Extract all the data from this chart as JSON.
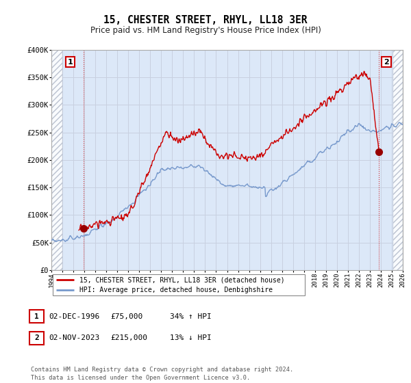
{
  "title": "15, CHESTER STREET, RHYL, LL18 3ER",
  "subtitle": "Price paid vs. HM Land Registry's House Price Index (HPI)",
  "red_label": "15, CHESTER STREET, RHYL, LL18 3ER (detached house)",
  "blue_label": "HPI: Average price, detached house, Denbighshire",
  "annotation1_num": "1",
  "annotation1_date": "02-DEC-1996",
  "annotation1_price": "£75,000",
  "annotation1_hpi": "34% ↑ HPI",
  "annotation2_num": "2",
  "annotation2_date": "02-NOV-2023",
  "annotation2_price": "£215,000",
  "annotation2_hpi": "13% ↓ HPI",
  "footer": "Contains HM Land Registry data © Crown copyright and database right 2024.\nThis data is licensed under the Open Government Licence v3.0.",
  "red_color": "#cc0000",
  "blue_color": "#7799cc",
  "marker_color": "#990000",
  "grid_color": "#c8d0e0",
  "plot_bg_color": "#dce8f8",
  "marker1_year": 1996.92,
  "marker1_val": 75000,
  "marker2_year": 2023.84,
  "marker2_val": 215000,
  "ylim": [
    0,
    400000
  ],
  "xlim_start": 1994,
  "xlim_end": 2026,
  "hatch_left_end": 1995.0,
  "hatch_right_start": 2025.1
}
